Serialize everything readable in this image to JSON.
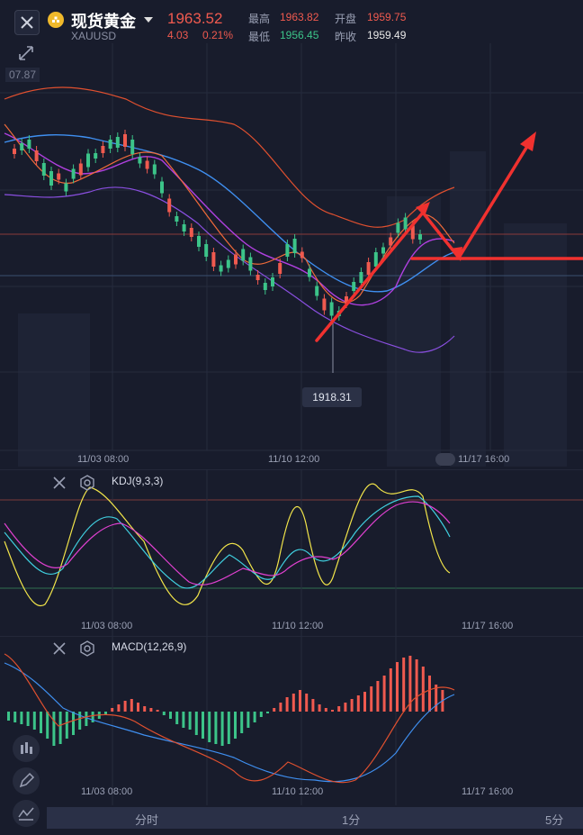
{
  "header": {
    "title": "现货黄金",
    "symbol": "XAUUSD",
    "price": "1963.52",
    "change": "4.03",
    "change_pct": "0.21%",
    "high_label": "最高",
    "high_value": "1963.82",
    "low_label": "最低",
    "low_value": "1956.45",
    "open_label": "开盘",
    "open_value": "1959.75",
    "prev_close_label": "昨收",
    "prev_close_value": "1959.49"
  },
  "main_chart": {
    "top_axis_value": "07.87",
    "low_callout": "1918.31",
    "time_labels": [
      "11/03 08:00",
      "11/10 12:00",
      "11/17 16:00"
    ]
  },
  "kdj": {
    "label": "KDJ(9,3,3)",
    "time_labels": [
      "11/03 08:00",
      "11/10 12:00",
      "11/17 16:00"
    ]
  },
  "macd": {
    "label": "MACD(12,26,9)",
    "time_labels": [
      "11/03 08:00",
      "11/10 12:00",
      "11/17 16:00"
    ]
  },
  "footer": {
    "tabs": [
      "分时",
      "1分",
      "5分"
    ]
  },
  "colors": {
    "up": "#f05a4f",
    "down": "#3cc489",
    "background": "#181c2c",
    "ma_orange": "#f06a3a",
    "ma_blue": "#3f8ff0",
    "ma_purple": "#b040e0",
    "boll_purple": "#8a4fe0",
    "kdj_yellow": "#f2e54a",
    "kdj_cyan": "#40d0e0",
    "kdj_magenta": "#e040d0"
  },
  "icons": [
    "close-icon",
    "gold-coin-icon",
    "chevron-down-icon",
    "collapse-icon",
    "settings-icon",
    "candlestick-icon",
    "pencil-icon",
    "chart-line-icon"
  ]
}
